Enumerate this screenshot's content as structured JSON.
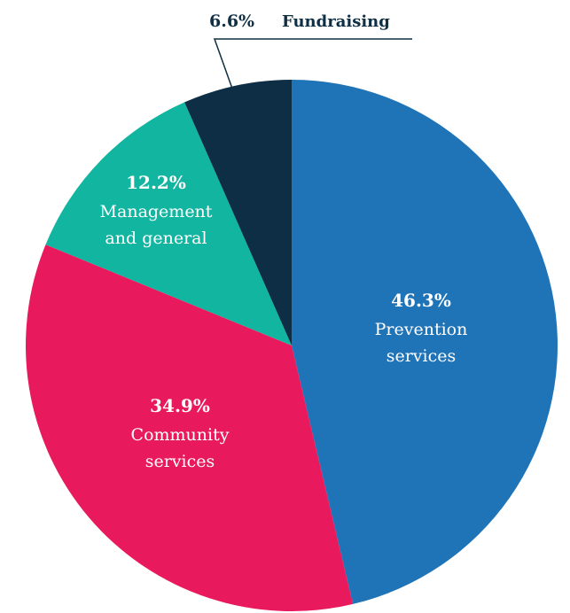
{
  "chart_data": {
    "type": "pie",
    "slices": [
      {
        "label": "Prevention services",
        "label_lines": [
          "Prevention",
          "services"
        ],
        "pct_text": "46.3%",
        "value": 46.3,
        "color": "#1f73b7"
      },
      {
        "label": "Community services",
        "label_lines": [
          "Community",
          "services"
        ],
        "pct_text": "34.9%",
        "value": 34.9,
        "color": "#e8195c"
      },
      {
        "label": "Management and general",
        "label_lines": [
          "Management",
          "and general"
        ],
        "pct_text": "12.2%",
        "value": 12.2,
        "color": "#12b5a0"
      },
      {
        "label": "Fundraising",
        "label_lines": [
          "Fundraising"
        ],
        "pct_text": "6.6%",
        "value": 6.6,
        "color": "#0d2e45",
        "external_label": true
      }
    ],
    "label_color": "#ffffff",
    "external_label_color": "#0f2f44",
    "start": "12 o'clock",
    "direction": "clockwise",
    "legend": "none"
  }
}
